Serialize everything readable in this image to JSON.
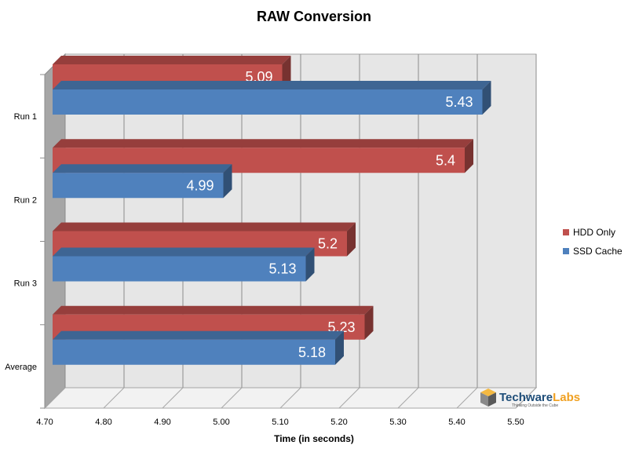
{
  "chart_data": {
    "type": "bar",
    "orientation": "horizontal",
    "title": "RAW Conversion",
    "xlabel": "Time (in seconds)",
    "ylabel": "",
    "xlim": [
      4.7,
      5.5
    ],
    "x_ticks": [
      "4.70",
      "4.80",
      "4.90",
      "5.00",
      "5.10",
      "5.20",
      "5.30",
      "5.40",
      "5.50"
    ],
    "categories": [
      "Run 1",
      "Run 2",
      "Run 3",
      "Average"
    ],
    "series": [
      {
        "name": "HDD Only",
        "values": [
          5.09,
          5.4,
          5.2,
          5.23
        ],
        "labels": [
          "5.09",
          "5.4",
          "5.2",
          "5.23"
        ],
        "color": "#c0504d"
      },
      {
        "name": "SSD Cache",
        "values": [
          5.43,
          4.99,
          5.13,
          5.18
        ],
        "labels": [
          "5.43",
          "4.99",
          "5.13",
          "5.18"
        ],
        "color": "#4f81bd"
      }
    ],
    "grid": true,
    "legend_position": "right"
  },
  "logo": {
    "name": "TechwareLabs",
    "tagline": "Thinking Outside the Cube"
  }
}
